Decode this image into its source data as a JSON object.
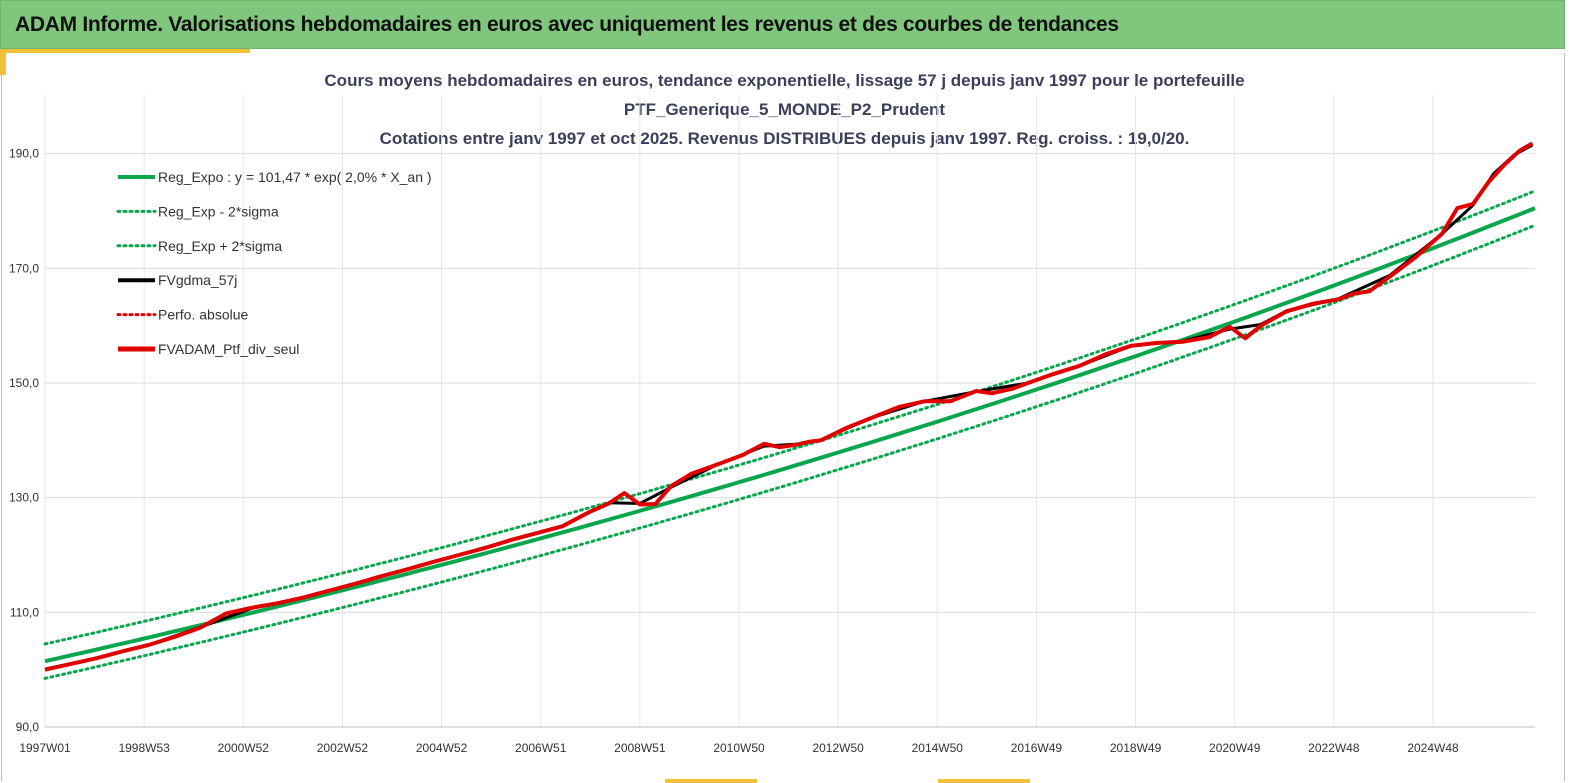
{
  "header": {
    "title": "ADAM Informe. Valorisations hebdomadaires en euros avec uniquement les revenus et des courbes de tendances"
  },
  "colors": {
    "banner": "#80c67c",
    "accent": "#f2c037",
    "trend": "#0aa64e",
    "black": "#000000",
    "red": "#e00000"
  },
  "chart_data": {
    "type": "line",
    "title": [
      "Cours moyens hebdomadaires  en euros, tendance exponentielle, lissage 57 j depuis janv 1997 pour le portefeuille",
      "PTF_Generique_5_MONDE_P2_Prudent",
      "Cotations  entre janv 1997 et oct 2025. Revenus DISTRIBUES depuis janv 1997. Reg. croiss. : 19,0/20."
    ],
    "x_tick_labels": [
      "1997W01",
      "1998W53",
      "2000W52",
      "2002W52",
      "2004W52",
      "2006W51",
      "2008W51",
      "2010W50",
      "2012W50",
      "2014W50",
      "2016W49",
      "2018W49",
      "2020W49",
      "2022W48",
      "2024W48"
    ],
    "x_range_years": [
      1997.0,
      2025.8
    ],
    "y_tick_labels": [
      "90,0",
      "110,0",
      "130,0",
      "150,0",
      "170,0",
      "190,0"
    ],
    "y_ticks": [
      90,
      110,
      130,
      150,
      170,
      190
    ],
    "ylim": [
      90,
      195
    ],
    "grid": true,
    "legend_position": "top-left",
    "trend": {
      "a": 101.47,
      "rate": 0.02,
      "sigma_band": 3.0
    },
    "legend": [
      {
        "label": "Reg_Expo : y = 101,47 * exp( 2,0% *  X_an )",
        "color": "#0aa64e",
        "style": "solid"
      },
      {
        "label": "Reg_Exp - 2*sigma",
        "color": "#0aa64e",
        "style": "dotted"
      },
      {
        "label": "Reg_Exp + 2*sigma",
        "color": "#0aa64e",
        "style": "dotted"
      },
      {
        "label": "FVgdma_57j",
        "color": "#000000",
        "style": "solid"
      },
      {
        "label": "Perfo. absolue",
        "color": "#e00000",
        "style": "dotted"
      },
      {
        "label": "FVADAM_Ptf_div_seul",
        "color": "#e00000",
        "style": "solid-thick"
      }
    ],
    "series": [
      {
        "name": "FVADAM_Ptf_div_seul",
        "x": [
          1997.0,
          1997.5,
          1998.0,
          1998.5,
          1999.0,
          1999.5,
          2000.0,
          2000.5,
          2001.0,
          2001.5,
          2002.0,
          2002.5,
          2003.0,
          2003.5,
          2004.0,
          2004.5,
          2005.0,
          2005.5,
          2006.0,
          2006.5,
          2007.0,
          2007.5,
          2007.9,
          2008.2,
          2008.5,
          2008.8,
          2009.1,
          2009.5,
          2010.0,
          2010.5,
          2010.9,
          2011.2,
          2011.5,
          2011.8,
          2012.0,
          2012.5,
          2013.0,
          2013.5,
          2014.0,
          2014.5,
          2015.0,
          2015.3,
          2015.7,
          2016.0,
          2016.5,
          2017.0,
          2017.5,
          2018.0,
          2018.5,
          2019.0,
          2019.5,
          2019.9,
          2020.2,
          2020.5,
          2021.0,
          2021.5,
          2022.0,
          2022.3,
          2022.6,
          2023.0,
          2023.5,
          2024.0,
          2024.3,
          2024.6,
          2024.9,
          2025.2,
          2025.5,
          2025.75
        ],
        "y": [
          100.0,
          101.0,
          102.0,
          103.2,
          104.3,
          105.7,
          107.3,
          109.8,
          110.8,
          111.6,
          112.6,
          113.8,
          115.0,
          116.3,
          117.5,
          118.8,
          120.0,
          121.2,
          122.6,
          123.8,
          125.0,
          127.4,
          129.0,
          130.8,
          128.8,
          128.9,
          132.0,
          134.2,
          135.8,
          137.5,
          139.4,
          138.8,
          139.2,
          139.8,
          140.0,
          142.2,
          144.0,
          145.8,
          146.8,
          146.8,
          148.6,
          148.2,
          149.0,
          150.0,
          151.6,
          153.0,
          155.0,
          156.5,
          157.0,
          157.2,
          158.0,
          159.8,
          157.8,
          160.0,
          162.5,
          163.8,
          164.6,
          165.6,
          166.0,
          168.6,
          172.0,
          176.0,
          180.5,
          181.2,
          185.0,
          188.0,
          190.5,
          191.8
        ]
      },
      {
        "name": "FVgdma_57j",
        "x": [
          1997.0,
          1998.0,
          1999.0,
          2000.0,
          2001.0,
          2002.0,
          2003.0,
          2004.0,
          2005.0,
          2006.0,
          2007.0,
          2007.9,
          2008.5,
          2009.1,
          2010.0,
          2010.9,
          2011.5,
          2012.0,
          2013.0,
          2014.0,
          2015.0,
          2016.0,
          2017.0,
          2018.0,
          2019.0,
          2019.9,
          2020.5,
          2021.0,
          2022.0,
          2023.0,
          2024.0,
          2024.6,
          2025.0,
          2025.4,
          2025.75
        ],
        "y": [
          100.1,
          102.0,
          104.3,
          107.4,
          110.7,
          112.6,
          115.0,
          117.5,
          120.0,
          122.6,
          125.1,
          129.1,
          129.0,
          131.8,
          135.8,
          139.0,
          139.3,
          140.1,
          144.0,
          146.8,
          148.5,
          150.0,
          153.0,
          156.5,
          157.3,
          159.4,
          160.2,
          162.6,
          164.7,
          168.8,
          176.0,
          181.0,
          186.5,
          189.8,
          191.5
        ]
      }
    ]
  }
}
